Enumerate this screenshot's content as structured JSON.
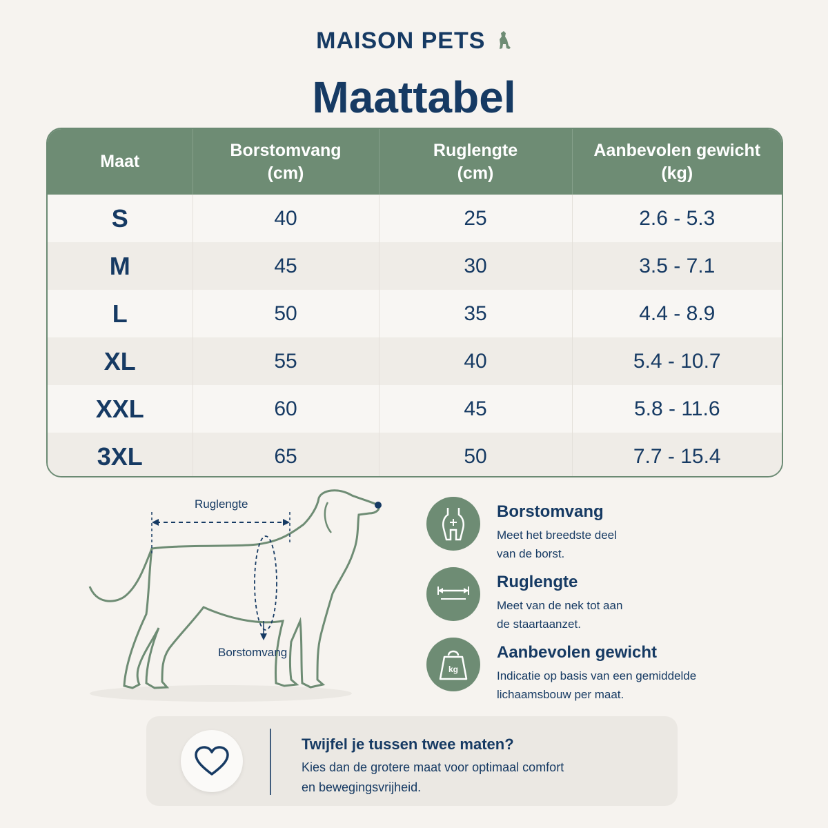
{
  "brand": {
    "name": "MAISON PETS",
    "icon": "dog-icon"
  },
  "title": "Maattabel",
  "table": {
    "headers": {
      "size": "Maat",
      "chest": [
        "Borstomvang",
        "(cm)"
      ],
      "back": [
        "Ruglengte",
        "(cm)"
      ],
      "weight": [
        "Aanbevolen gewicht",
        "(kg)"
      ]
    },
    "rows": [
      {
        "size": "S",
        "chest": "40",
        "back": "25",
        "weight": "2.6 - 5.3"
      },
      {
        "size": "M",
        "chest": "45",
        "back": "30",
        "weight": "3.5 - 7.1"
      },
      {
        "size": "L",
        "chest": "50",
        "back": "35",
        "weight": "4.4 - 8.9"
      },
      {
        "size": "XL",
        "chest": "55",
        "back": "40",
        "weight": "5.4 - 10.7"
      },
      {
        "size": "XXL",
        "chest": "60",
        "back": "45",
        "weight": "5.8 - 11.6"
      },
      {
        "size": "3XL",
        "chest": "65",
        "back": "50",
        "weight": "7.7 - 15.4"
      }
    ]
  },
  "diagram": {
    "back_label": "Ruglengte",
    "chest_label": "Borstomvang"
  },
  "info": [
    {
      "icon": "harness-icon",
      "title": "Borstomvang",
      "lines": [
        "Meet het breedste deel",
        "van de borst."
      ]
    },
    {
      "icon": "ruler-icon",
      "title": "Ruglengte",
      "lines": [
        "Meet van de nek tot aan",
        "de staartaanzet."
      ]
    },
    {
      "icon": "weight-icon",
      "icon_text": "kg",
      "title": "Aanbevolen gewicht",
      "lines": [
        "Indicatie op basis van een gemiddelde",
        "lichaamsbouw per maat."
      ]
    }
  ],
  "tip": {
    "icon": "heart-icon",
    "title": "Twijfel je tussen twee maten?",
    "lines": [
      "Kies dan de grotere maat voor optimaal comfort",
      "en bewegingsvrijheid."
    ]
  },
  "colors": {
    "navy": "#163a63",
    "sage": "#6e8c74",
    "background": "#f6f3ef"
  }
}
